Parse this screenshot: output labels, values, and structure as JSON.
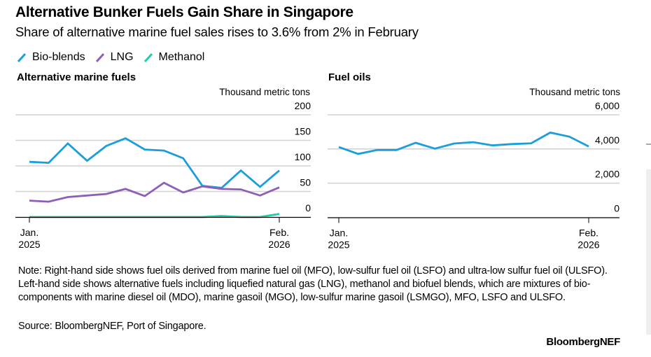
{
  "header": {
    "title": "Alternative Bunker Fuels Gain Share in Singapore",
    "subtitle": "Share of alternative marine fuel sales rises to 3.6% from 2% in February"
  },
  "legend": [
    {
      "label": "Bio-blends",
      "color": "#1b9ed9",
      "icon": "diagonal-line-icon"
    },
    {
      "label": "LNG",
      "color": "#8d5fb8",
      "icon": "diagonal-line-icon"
    },
    {
      "label": "Methanol",
      "color": "#1ccfae",
      "icon": "diagonal-line-icon"
    }
  ],
  "chart_data": [
    {
      "type": "line",
      "title": "Alternative marine fuels",
      "ylabel": "Thousand metric tons",
      "xlabel": "",
      "ylim": [
        0,
        200
      ],
      "yticks": [
        "200",
        "150",
        "100",
        "50",
        "0"
      ],
      "ytick_values": [
        200,
        150,
        100,
        50,
        0
      ],
      "grid": true,
      "x": [
        "Jan 2025",
        "Feb 2025",
        "Mar 2025",
        "Apr 2025",
        "May 2025",
        "Jun 2025",
        "Jul 2025",
        "Aug 2025",
        "Sep 2025",
        "Oct 2025",
        "Nov 2025",
        "Dec 2025",
        "Jan 2026",
        "Feb 2026"
      ],
      "xtick_labels": [
        {
          "index": 0,
          "line1": "Jan.",
          "line2": "2025"
        },
        {
          "index": 13,
          "line1": "Feb.",
          "line2": "2026"
        }
      ],
      "series": [
        {
          "name": "Bio-blends",
          "color": "#1b9ed9",
          "values": [
            108,
            106,
            144,
            110,
            139,
            154,
            132,
            130,
            115,
            61,
            57,
            91,
            59,
            91
          ]
        },
        {
          "name": "LNG",
          "color": "#8d5fb8",
          "values": [
            32,
            30,
            39,
            42,
            45,
            55,
            41,
            67,
            48,
            60,
            55,
            54,
            42,
            58
          ]
        },
        {
          "name": "Methanol",
          "color": "#1ccfae",
          "values": [
            0,
            0,
            0,
            0,
            0,
            0,
            0,
            0,
            0,
            0,
            2,
            0,
            0,
            6
          ]
        }
      ]
    },
    {
      "type": "line",
      "title": "Fuel oils",
      "ylabel": "Thousand metric tons",
      "xlabel": "",
      "ylim": [
        0,
        6000
      ],
      "yticks": [
        "6,000",
        "4,000",
        "2,000",
        "0"
      ],
      "ytick_values": [
        6000,
        4000,
        2000,
        0
      ],
      "grid": true,
      "x": [
        "Jan 2025",
        "Feb 2025",
        "Mar 2025",
        "Apr 2025",
        "May 2025",
        "Jun 2025",
        "Jul 2025",
        "Aug 2025",
        "Sep 2025",
        "Oct 2025",
        "Nov 2025",
        "Dec 2025",
        "Jan 2026",
        "Feb 2026"
      ],
      "xtick_labels": [
        {
          "index": 0,
          "line1": "Jan.",
          "line2": "2025"
        },
        {
          "index": 13,
          "line1": "Feb.",
          "line2": "2026"
        }
      ],
      "series": [
        {
          "name": "Fuel oils",
          "color": "#1b9ed9",
          "values": [
            4110,
            3710,
            3940,
            3940,
            4360,
            4020,
            4320,
            4400,
            4210,
            4290,
            4330,
            4960,
            4720,
            4150
          ]
        }
      ]
    }
  ],
  "footer": {
    "note": "Note: Right-hand side shows fuel oils derived from marine fuel oil (MFO), low-sulfur fuel oil (LSFO) and ultra-low sulfur fuel oil (ULSFO). Left-hand side shows alternative fuels including liquefied natural gas (LNG), methanol and biofuel blends, which are mixtures of bio-components with marine diesel oil (MDO), marine gasoil (MGO), low-sulfur marine gasoil (LSMGO), MFO, LSFO and ULSFO.",
    "source": "Source: BloombergNEF, Port of Singapore.",
    "brand": "BloombergNEF"
  }
}
